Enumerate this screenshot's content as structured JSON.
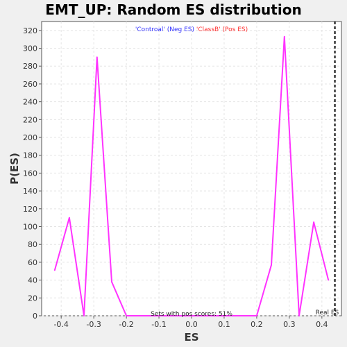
{
  "chart_data": {
    "type": "line",
    "title": "EMT_UP: Random ES distribution",
    "xlabel": "ES",
    "ylabel": "P(ES)",
    "xlim": [
      -0.46,
      0.46
    ],
    "ylim": [
      0,
      330
    ],
    "x_ticks": [
      -0.4,
      -0.3,
      -0.2,
      -0.1,
      0.0,
      0.1,
      0.2,
      0.3,
      0.4
    ],
    "x_tick_labels": [
      "-0.4",
      "-0.3",
      "-0.2",
      "-0.1",
      "0.0",
      "0.1",
      "0.2",
      "0.3",
      "0.4"
    ],
    "y_ticks": [
      0,
      20,
      40,
      60,
      80,
      100,
      120,
      140,
      160,
      180,
      200,
      220,
      240,
      260,
      280,
      300,
      320
    ],
    "y_tick_labels": [
      "0",
      "20",
      "40",
      "60",
      "80",
      "100",
      "120",
      "140",
      "160",
      "180",
      "200",
      "220",
      "240",
      "260",
      "280",
      "300",
      "320"
    ],
    "grid": true,
    "series": [
      {
        "color": "#ff33ff",
        "x": [
          -0.42,
          -0.375,
          -0.33,
          -0.29,
          -0.245,
          -0.2,
          0.2,
          0.245,
          0.285,
          0.33,
          0.375,
          0.42
        ],
        "y": [
          51,
          110,
          0,
          290,
          38,
          0,
          0,
          57,
          313,
          0,
          105,
          40
        ]
      }
    ],
    "legend": {
      "position": "top-center",
      "entries": [
        {
          "text": "'Controal' (Neg ES)",
          "color": "#3333ff"
        },
        {
          "text": "'ClassB' (Pos ES)",
          "color": "#ff3333"
        }
      ]
    },
    "reference_line": {
      "x": 0.44,
      "label": "Real ES",
      "style": "dashed"
    },
    "annotation": "Sets with pos scores: 51%"
  }
}
